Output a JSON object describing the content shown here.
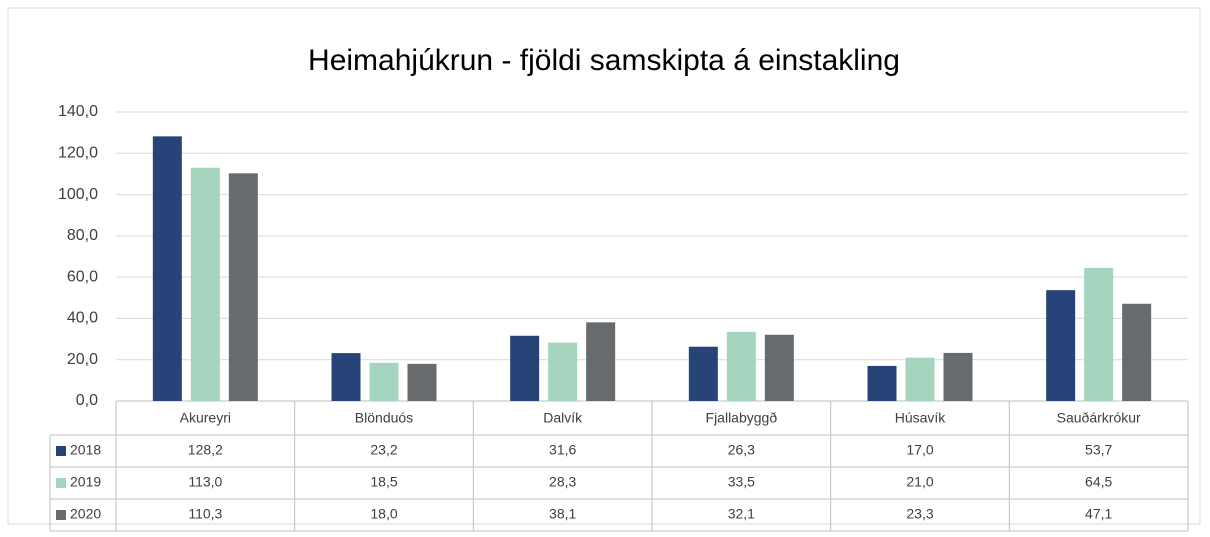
{
  "chart_data": {
    "type": "bar",
    "title": "Heimahjúkrun  - fjöldi samskipta á einstakling",
    "categories": [
      "Akureyri",
      "Blönduós",
      "Dalvík",
      "Fjallabyggð",
      "Húsavík",
      "Sauðárkrókur"
    ],
    "series": [
      {
        "name": "2018",
        "color": "#264478",
        "values": [
          128.2,
          23.2,
          31.6,
          26.3,
          17.0,
          53.7
        ],
        "value_labels": [
          "128,2",
          "23,2",
          "31,6",
          "26,3",
          "17,0",
          "53,7"
        ]
      },
      {
        "name": "2019",
        "color": "#a5d5bf",
        "values": [
          113.0,
          18.5,
          28.3,
          33.5,
          21.0,
          64.5
        ],
        "value_labels": [
          "113,0",
          "18,5",
          "28,3",
          "33,5",
          "21,0",
          "64,5"
        ]
      },
      {
        "name": "2020",
        "color": "#686b6e",
        "values": [
          110.3,
          18.0,
          38.1,
          32.1,
          23.3,
          47.1
        ],
        "value_labels": [
          "110,3",
          "18,0",
          "38,1",
          "32,1",
          "23,3",
          "47,1"
        ]
      }
    ],
    "ylim": [
      0,
      140
    ],
    "yticks": [
      {
        "value": 0,
        "label": "0,0"
      },
      {
        "value": 20,
        "label": "20,0"
      },
      {
        "value": 40,
        "label": "40,0"
      },
      {
        "value": 60,
        "label": "60,0"
      },
      {
        "value": 80,
        "label": "80,0"
      },
      {
        "value": 100,
        "label": "100,0"
      },
      {
        "value": 120,
        "label": "120,0"
      },
      {
        "value": 140,
        "label": "140,0"
      }
    ],
    "grid": true
  }
}
